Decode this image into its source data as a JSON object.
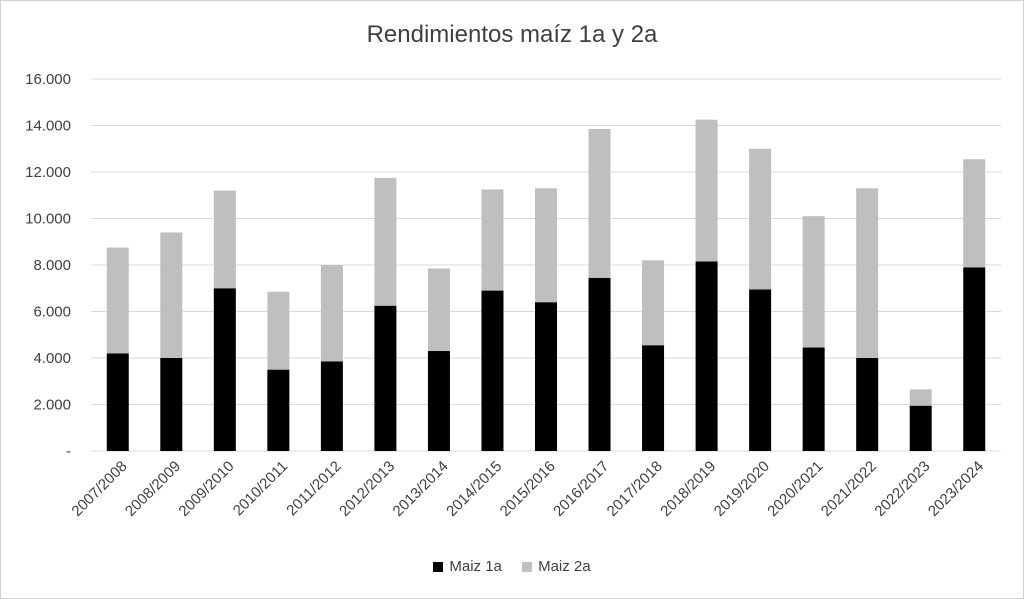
{
  "chart_data": {
    "type": "bar",
    "stacked": true,
    "title": "Rendimientos maíz 1a y 2a",
    "xlabel": "",
    "ylabel": "",
    "ylim": [
      0,
      16000
    ],
    "y_ticks": [
      0,
      2000,
      4000,
      6000,
      8000,
      10000,
      12000,
      14000,
      16000
    ],
    "y_tick_labels": [
      "-",
      "2.000",
      "4.000",
      "6.000",
      "8.000",
      "10.000",
      "12.000",
      "14.000",
      "16.000"
    ],
    "grid": true,
    "legend_position": "bottom",
    "categories": [
      "2007/2008",
      "2008/2009",
      "2009/2010",
      "2010/2011",
      "2011/2012",
      "2012/2013",
      "2013/2014",
      "2014/2015",
      "2015/2016",
      "2016/2017",
      "2017/2018",
      "2018/2019",
      "2019/2020",
      "2020/2021",
      "2021/2022",
      "2022/2023",
      "2023/2024"
    ],
    "series": [
      {
        "name": "Maiz 1a",
        "color": "#000000",
        "values": [
          4200,
          4000,
          7000,
          3500,
          3850,
          6250,
          4300,
          6900,
          6400,
          7450,
          4550,
          8150,
          6950,
          4450,
          4000,
          1950,
          7900
        ]
      },
      {
        "name": "Maiz 2a",
        "color": "#bfbfbf",
        "values": [
          4550,
          5400,
          4200,
          3350,
          4150,
          5500,
          3550,
          4350,
          4900,
          6400,
          3650,
          6100,
          6050,
          5650,
          7300,
          700,
          4650
        ]
      }
    ]
  }
}
